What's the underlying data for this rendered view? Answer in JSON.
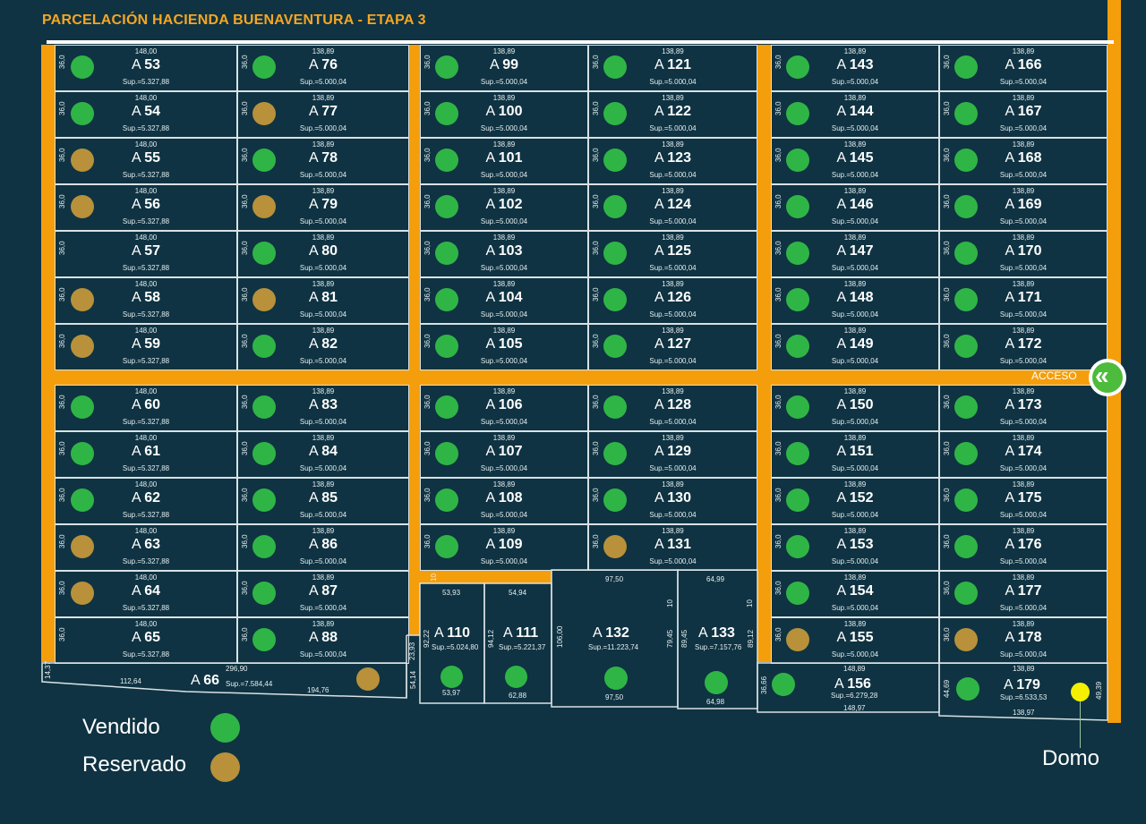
{
  "title": "PARCELACIÓN HACIENDA BUENAVENTURA - ETAPA 3",
  "lot_prefix": "A",
  "acceso_label": "ACCESO",
  "acceso_icon": "double-chevron-left-icon",
  "domo_label": "Domo",
  "legend": [
    {
      "label": "Vendido",
      "status": "sold"
    },
    {
      "label": "Reservado",
      "status": "reserved"
    }
  ],
  "colors": {
    "background": "#0f3342",
    "road": "#f59e0b",
    "sold": "#2fb546",
    "reserved": "#b8913a",
    "domo": "#f4f000",
    "title": "#f5a623"
  },
  "columns": [
    {
      "width": "148,00",
      "area": "Sup.=5.327,88",
      "depth": "36,0",
      "lots": [
        {
          "n": "53",
          "s": "sold"
        },
        {
          "n": "54",
          "s": "sold"
        },
        {
          "n": "55",
          "s": "reserved"
        },
        {
          "n": "56",
          "s": "reserved"
        },
        {
          "n": "57",
          "s": "available"
        },
        {
          "n": "58",
          "s": "reserved"
        },
        {
          "n": "59",
          "s": "reserved"
        },
        {
          "n": "60",
          "s": "sold"
        },
        {
          "n": "61",
          "s": "sold"
        },
        {
          "n": "62",
          "s": "sold"
        },
        {
          "n": "63",
          "s": "reserved"
        },
        {
          "n": "64",
          "s": "reserved"
        },
        {
          "n": "65",
          "s": "available"
        }
      ]
    },
    {
      "width": "138,89",
      "area": "Sup.=5.000,04",
      "depth": "36,0",
      "lots": [
        {
          "n": "76",
          "s": "sold"
        },
        {
          "n": "77",
          "s": "reserved"
        },
        {
          "n": "78",
          "s": "sold"
        },
        {
          "n": "79",
          "s": "reserved"
        },
        {
          "n": "80",
          "s": "sold"
        },
        {
          "n": "81",
          "s": "reserved"
        },
        {
          "n": "82",
          "s": "sold"
        },
        {
          "n": "83",
          "s": "sold"
        },
        {
          "n": "84",
          "s": "sold"
        },
        {
          "n": "85",
          "s": "sold"
        },
        {
          "n": "86",
          "s": "sold"
        },
        {
          "n": "87",
          "s": "sold"
        },
        {
          "n": "88",
          "s": "sold"
        }
      ]
    },
    {
      "width": "138,89",
      "area": "Sup.=5.000,04",
      "depth": "36,0",
      "lots": [
        {
          "n": "99",
          "s": "sold"
        },
        {
          "n": "100",
          "s": "sold"
        },
        {
          "n": "101",
          "s": "sold"
        },
        {
          "n": "102",
          "s": "sold"
        },
        {
          "n": "103",
          "s": "sold"
        },
        {
          "n": "104",
          "s": "sold"
        },
        {
          "n": "105",
          "s": "sold"
        },
        {
          "n": "106",
          "s": "sold"
        },
        {
          "n": "107",
          "s": "sold"
        },
        {
          "n": "108",
          "s": "sold"
        },
        {
          "n": "109",
          "s": "sold"
        }
      ]
    },
    {
      "width": "138,89",
      "area": "Sup.=5.000,04",
      "depth": "36,0",
      "lots": [
        {
          "n": "121",
          "s": "sold"
        },
        {
          "n": "122",
          "s": "sold"
        },
        {
          "n": "123",
          "s": "sold"
        },
        {
          "n": "124",
          "s": "sold"
        },
        {
          "n": "125",
          "s": "sold"
        },
        {
          "n": "126",
          "s": "sold"
        },
        {
          "n": "127",
          "s": "sold"
        },
        {
          "n": "128",
          "s": "sold"
        },
        {
          "n": "129",
          "s": "sold"
        },
        {
          "n": "130",
          "s": "sold"
        },
        {
          "n": "131",
          "s": "reserved"
        }
      ]
    },
    {
      "width": "138,89",
      "area": "Sup.=5.000,04",
      "depth": "36,0",
      "lots": [
        {
          "n": "143",
          "s": "sold"
        },
        {
          "n": "144",
          "s": "sold"
        },
        {
          "n": "145",
          "s": "sold"
        },
        {
          "n": "146",
          "s": "sold"
        },
        {
          "n": "147",
          "s": "sold"
        },
        {
          "n": "148",
          "s": "sold"
        },
        {
          "n": "149",
          "s": "sold"
        },
        {
          "n": "150",
          "s": "sold"
        },
        {
          "n": "151",
          "s": "sold"
        },
        {
          "n": "152",
          "s": "sold"
        },
        {
          "n": "153",
          "s": "sold"
        },
        {
          "n": "154",
          "s": "sold"
        },
        {
          "n": "155",
          "s": "reserved"
        }
      ]
    },
    {
      "width": "138,89",
      "area": "Sup.=5.000,04",
      "depth": "36,0",
      "lots": [
        {
          "n": "166",
          "s": "sold"
        },
        {
          "n": "167",
          "s": "sold"
        },
        {
          "n": "168",
          "s": "sold"
        },
        {
          "n": "169",
          "s": "sold"
        },
        {
          "n": "170",
          "s": "sold"
        },
        {
          "n": "171",
          "s": "sold"
        },
        {
          "n": "172",
          "s": "sold"
        },
        {
          "n": "173",
          "s": "sold"
        },
        {
          "n": "174",
          "s": "sold"
        },
        {
          "n": "175",
          "s": "sold"
        },
        {
          "n": "176",
          "s": "sold"
        },
        {
          "n": "177",
          "s": "sold"
        },
        {
          "n": "178",
          "s": "reserved"
        }
      ]
    }
  ],
  "special_lots": {
    "lot66": {
      "n": "66",
      "area": "Sup.=7.584,44",
      "top": "296,90",
      "left": "112,64",
      "right": "194,76",
      "edge_left": "14,37",
      "edge_right": "54,14",
      "s": "reserved"
    },
    "lot110": {
      "n": "110",
      "area": "Sup.=5.024,80",
      "top": "53,93",
      "bottom": "53,97",
      "side": "92,22",
      "side2": "23,93",
      "s": "sold"
    },
    "lot111": {
      "n": "111",
      "area": "Sup.=5.221,37",
      "top": "54,94",
      "bottom": "62,88",
      "side": "94,12",
      "s": "sold"
    },
    "lot132": {
      "n": "132",
      "area": "Sup.=11.223,74",
      "top": "97,50",
      "bottom": "97,50",
      "side": "106,00",
      "side2": "79,45",
      "side3": "10",
      "s": "sold"
    },
    "lot133": {
      "n": "133",
      "area": "Sup.=7.157,76",
      "top": "64,99",
      "bottom": "64,98",
      "side": "89,45",
      "side2": "89,12",
      "side3": "10",
      "s": "sold"
    },
    "lot156": {
      "n": "156",
      "area": "Sup.=6.279,28",
      "top": "148,89",
      "bottom": "148,97",
      "side": "36,66",
      "s": "sold"
    },
    "lot179": {
      "n": "179",
      "area": "Sup.=6.533,53",
      "top": "138,89",
      "bottom": "138,97",
      "side": "44,69",
      "side2": "49,39",
      "s": "sold"
    },
    "road_width": "10"
  }
}
